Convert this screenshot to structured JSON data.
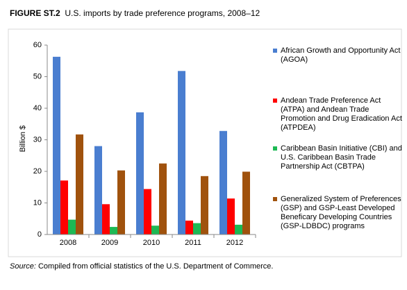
{
  "chart_data": {
    "type": "bar",
    "title_label": "FIGURE ST.2",
    "title": "U.S. imports by trade preference programs, 2008–12",
    "y_label": "Billion $",
    "categories": [
      "2008",
      "2009",
      "2010",
      "2011",
      "2012"
    ],
    "series": [
      {
        "name": "African Growth and Opportunity Act (AGOA)",
        "color": "#4a7ed0",
        "values": [
          56.3,
          28.0,
          38.7,
          51.8,
          32.8
        ]
      },
      {
        "name": "Andean Trade Preference Act (ATPA) and Andean Trade Promotion and Drug Eradication Act (ATPDEA)",
        "color": "#ff0000",
        "values": [
          17.1,
          9.6,
          14.4,
          4.4,
          11.4
        ]
      },
      {
        "name": "Caribbean Basin Initiative (CBI) and U.S. Caribbean Basin Trade Partnership Act (CBTPA)",
        "color": "#1db954",
        "values": [
          4.7,
          2.4,
          2.8,
          3.6,
          3.1
        ]
      },
      {
        "name": "Generalized System of Preferences (GSP) and GSP-Least Developed Beneficary Developing Countries (GSP-LDBDC) programs",
        "color": "#a0520d",
        "values": [
          31.7,
          20.3,
          22.5,
          18.5,
          19.9
        ]
      }
    ],
    "ylim": [
      0,
      60
    ],
    "yticks": [
      0,
      10,
      20,
      30,
      40,
      50,
      60
    ],
    "grid": false,
    "source_label": "Source:",
    "source": "Compiled from official statistics of the U.S. Department of Commerce."
  }
}
